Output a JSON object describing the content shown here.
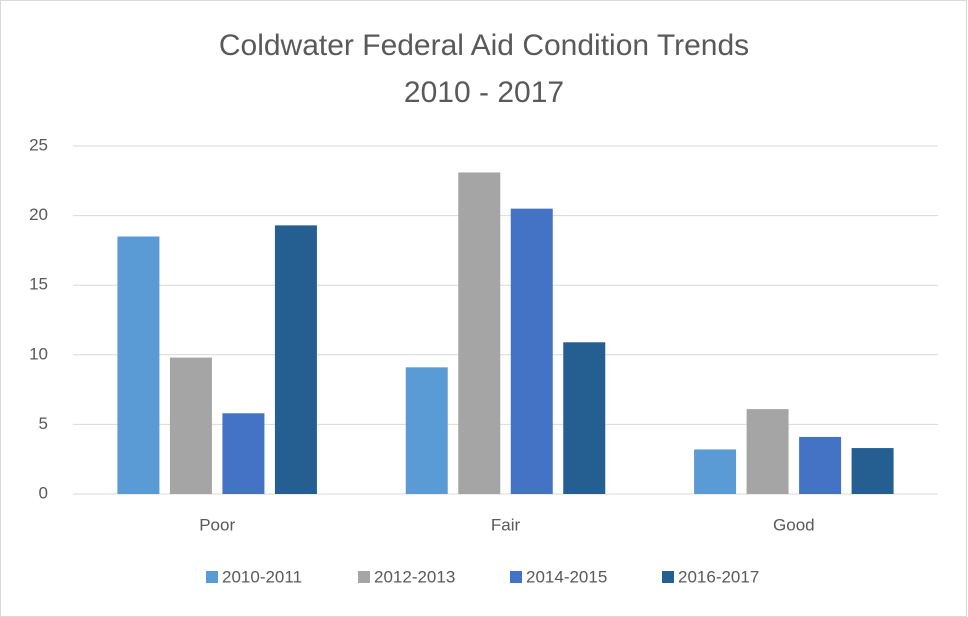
{
  "chart_data": {
    "type": "bar",
    "title": "Coldwater Federal Aid Condition Trends",
    "subtitle": "2010 - 2017",
    "categories": [
      "Poor",
      "Fair",
      "Good"
    ],
    "series": [
      {
        "name": "2010-2011",
        "color": "#5b9bd5",
        "values": [
          18.5,
          9.1,
          3.2
        ]
      },
      {
        "name": "2012-2013",
        "color": "#a5a5a5",
        "values": [
          9.8,
          23.1,
          6.1
        ]
      },
      {
        "name": "2014-2015",
        "color": "#4472c4",
        "values": [
          5.8,
          20.5,
          4.1
        ]
      },
      {
        "name": "2016-2017",
        "color": "#255e91",
        "values": [
          19.3,
          10.9,
          3.3
        ]
      }
    ],
    "ylim": [
      0,
      25
    ],
    "yticks": [
      0,
      5,
      10,
      15,
      20,
      25
    ],
    "grid": true,
    "legend": "bottom"
  }
}
